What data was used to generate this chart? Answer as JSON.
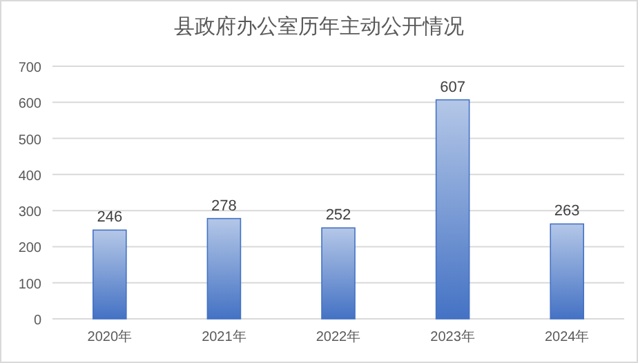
{
  "chart_data": {
    "type": "bar",
    "title": "县政府办公室历年主动公开情况",
    "categories": [
      "2020年",
      "2021年",
      "2022年",
      "2023年",
      "2024年"
    ],
    "values": [
      246,
      278,
      252,
      607,
      263
    ],
    "color": "#4472c4",
    "ylim": [
      0,
      700
    ],
    "yticks": [
      0,
      100,
      200,
      300,
      400,
      500,
      600,
      700
    ],
    "grid": "y",
    "data_labels": true
  }
}
